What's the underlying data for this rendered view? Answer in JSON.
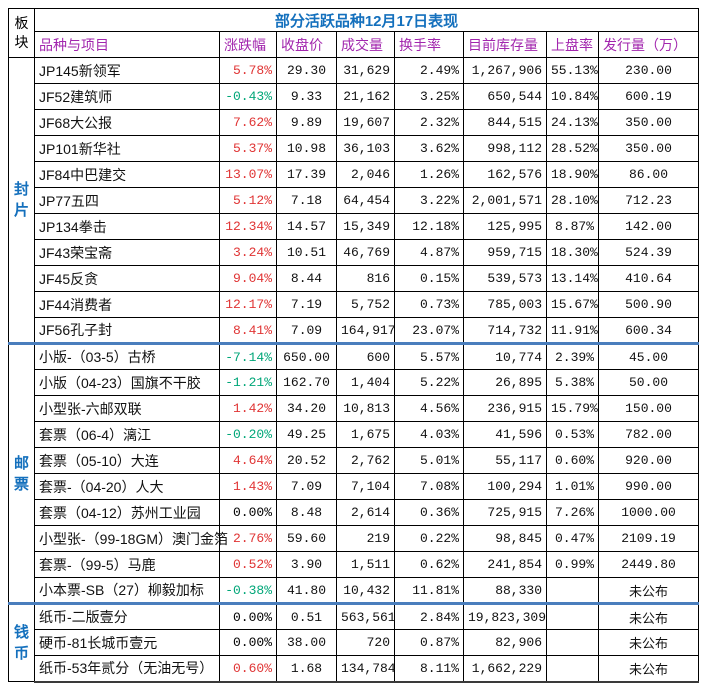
{
  "palette": {
    "title_blue": "#1470bd",
    "header_purple": "#a226ae",
    "up_red": "#e03434",
    "down_green": "#00a678",
    "sector_blue": "#1470bd",
    "divider_blue": "#4a7ebd"
  },
  "table": {
    "sector_header": "板块",
    "title": "部分活跃品种12月17日表现",
    "columns": [
      "品种与项目",
      "涨跌幅",
      "收盘价",
      "成交量",
      "换手率",
      "目前库存量",
      "上盘率",
      "发行量（万）"
    ],
    "not_published_label": "未公布",
    "sections": [
      {
        "label": "封片",
        "rows": [
          {
            "name": "JP145新领军",
            "change": "5.78%",
            "close": "29.30",
            "volume": "31,629",
            "turnover": "2.49%",
            "inventory": "1,267,906",
            "listing": "55.13%",
            "issuance": "230.00"
          },
          {
            "name": "JF52建筑师",
            "change": "-0.43%",
            "close": "9.33",
            "volume": "21,162",
            "turnover": "3.25%",
            "inventory": "650,544",
            "listing": "10.84%",
            "issuance": "600.19"
          },
          {
            "name": "JF68大公报",
            "change": "7.62%",
            "close": "9.89",
            "volume": "19,607",
            "turnover": "2.32%",
            "inventory": "844,515",
            "listing": "24.13%",
            "issuance": "350.00"
          },
          {
            "name": "JP101新华社",
            "change": "5.37%",
            "close": "10.98",
            "volume": "36,103",
            "turnover": "3.62%",
            "inventory": "998,112",
            "listing": "28.52%",
            "issuance": "350.00"
          },
          {
            "name": "JF84中巴建交",
            "change": "13.07%",
            "close": "17.39",
            "volume": "2,046",
            "turnover": "1.26%",
            "inventory": "162,576",
            "listing": "18.90%",
            "issuance": "86.00"
          },
          {
            "name": "JP77五四",
            "change": "5.12%",
            "close": "7.18",
            "volume": "64,454",
            "turnover": "3.22%",
            "inventory": "2,001,571",
            "listing": "28.10%",
            "issuance": "712.23"
          },
          {
            "name": "JP134拳击",
            "change": "12.34%",
            "close": "14.57",
            "volume": "15,349",
            "turnover": "12.18%",
            "inventory": "125,995",
            "listing": "8.87%",
            "issuance": "142.00"
          },
          {
            "name": "JF43荣宝斋",
            "change": "3.24%",
            "close": "10.51",
            "volume": "46,769",
            "turnover": "4.87%",
            "inventory": "959,715",
            "listing": "18.30%",
            "issuance": "524.39"
          },
          {
            "name": "JF45反贪",
            "change": "9.04%",
            "close": "8.44",
            "volume": "816",
            "turnover": "0.15%",
            "inventory": "539,573",
            "listing": "13.14%",
            "issuance": "410.64"
          },
          {
            "name": "JF44消费者",
            "change": "12.17%",
            "close": "7.19",
            "volume": "5,752",
            "turnover": "0.73%",
            "inventory": "785,003",
            "listing": "15.67%",
            "issuance": "500.90"
          },
          {
            "name": "JF56孔子封",
            "change": "8.41%",
            "close": "7.09",
            "volume": "164,917",
            "turnover": "23.07%",
            "inventory": "714,732",
            "listing": "11.91%",
            "issuance": "600.34"
          }
        ]
      },
      {
        "label": "邮票",
        "rows": [
          {
            "name": "小版-（03-5）古桥",
            "change": "-7.14%",
            "close": "650.00",
            "volume": "600",
            "turnover": "5.57%",
            "inventory": "10,774",
            "listing": "2.39%",
            "issuance": "45.00"
          },
          {
            "name": "小版（04-23）国旗不干胶",
            "change": "-1.21%",
            "close": "162.70",
            "volume": "1,404",
            "turnover": "5.22%",
            "inventory": "26,895",
            "listing": "5.38%",
            "issuance": "50.00"
          },
          {
            "name": "小型张-六邮双联",
            "change": "1.42%",
            "close": "34.20",
            "volume": "10,813",
            "turnover": "4.56%",
            "inventory": "236,915",
            "listing": "15.79%",
            "issuance": "150.00"
          },
          {
            "name": "套票（06-4）漓江",
            "change": "-0.20%",
            "close": "49.25",
            "volume": "1,675",
            "turnover": "4.03%",
            "inventory": "41,596",
            "listing": "0.53%",
            "issuance": "782.00"
          },
          {
            "name": "套票（05-10）大连",
            "change": "4.64%",
            "close": "20.52",
            "volume": "2,762",
            "turnover": "5.01%",
            "inventory": "55,117",
            "listing": "0.60%",
            "issuance": "920.00"
          },
          {
            "name": "套票-（04-20）人大",
            "change": "1.43%",
            "close": "7.09",
            "volume": "7,104",
            "turnover": "7.08%",
            "inventory": "100,294",
            "listing": "1.01%",
            "issuance": "990.00"
          },
          {
            "name": "套票（04-12）苏州工业园",
            "change": "0.00%",
            "close": "8.48",
            "volume": "2,614",
            "turnover": "0.36%",
            "inventory": "725,915",
            "listing": "7.26%",
            "issuance": "1000.00"
          },
          {
            "name": "小型张-（99-18GM）澳门金箔",
            "change": "2.76%",
            "close": "59.60",
            "volume": "219",
            "turnover": "0.22%",
            "inventory": "98,845",
            "listing": "0.47%",
            "issuance": "2109.19"
          },
          {
            "name": "套票-（99-5）马鹿",
            "change": "0.52%",
            "close": "3.90",
            "volume": "1,511",
            "turnover": "0.62%",
            "inventory": "241,854",
            "listing": "0.99%",
            "issuance": "2449.80"
          },
          {
            "name": "小本票-SB（27）柳毅加标",
            "change": "-0.38%",
            "close": "41.80",
            "volume": "10,432",
            "turnover": "11.81%",
            "inventory": "88,330",
            "listing": "",
            "issuance": "未公布"
          }
        ]
      },
      {
        "label": "钱币",
        "rows": [
          {
            "name": "纸币-二版壹分",
            "change": "0.00%",
            "close": "0.51",
            "volume": "563,561",
            "turnover": "2.84%",
            "inventory": "19,823,309",
            "listing": "",
            "issuance": "未公布"
          },
          {
            "name": "硬币-81长城币壹元",
            "change": "0.00%",
            "close": "38.00",
            "volume": "720",
            "turnover": "0.87%",
            "inventory": "82,906",
            "listing": "",
            "issuance": "未公布"
          },
          {
            "name": "纸币-53年贰分（无油无号）",
            "change": "0.60%",
            "close": "1.68",
            "volume": "134,784",
            "turnover": "8.11%",
            "inventory": "1,662,229",
            "listing": "",
            "issuance": "未公布"
          }
        ]
      }
    ]
  }
}
